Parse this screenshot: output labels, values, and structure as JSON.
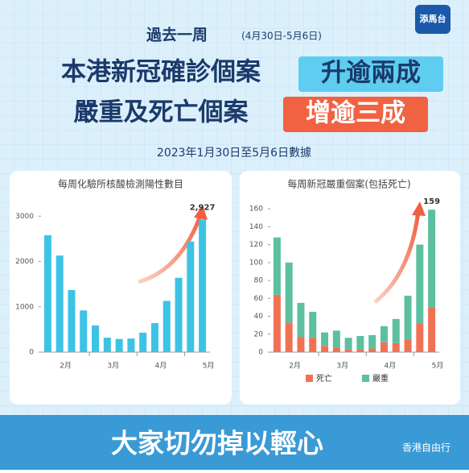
{
  "logo": "添馬台",
  "header": {
    "kicker": "過去一周",
    "period": "(4月30日-5月6日)",
    "line1": "本港新冠確診個案",
    "highlight1": "升逾兩成",
    "line2": "嚴重及死亡個案",
    "highlight2": "增逾三成",
    "source": "2023年1月30日至5月6日數據"
  },
  "footer": {
    "slogan": "大家切勿掉以輕心",
    "watermark": "香港自由行"
  },
  "chart_data": [
    {
      "type": "bar",
      "title": "每周化驗所核酸檢測陽性數目",
      "color": "#3cc3e6",
      "categories": [
        null,
        "2月",
        null,
        null,
        null,
        "3月",
        null,
        null,
        null,
        "4月",
        null,
        null,
        null,
        "5月"
      ],
      "values": [
        2580,
        2130,
        1370,
        920,
        590,
        320,
        290,
        300,
        430,
        640,
        1130,
        1640,
        2440,
        2927
      ],
      "value_labels": [
        null,
        null,
        null,
        null,
        null,
        null,
        null,
        null,
        null,
        null,
        null,
        null,
        null,
        "2,927"
      ],
      "ylim": [
        0,
        3200
      ],
      "yticks": [
        0,
        1000,
        2000,
        3000
      ]
    },
    {
      "type": "stacked_bar",
      "title": "每周新冠嚴重個案(包括死亡)",
      "categories": [
        null,
        "2月",
        null,
        null,
        null,
        "3月",
        null,
        null,
        null,
        "4月",
        null,
        null,
        null,
        "5月"
      ],
      "series": [
        {
          "name": "死亡",
          "color": "#f07254",
          "values": [
            64,
            33,
            17,
            16,
            7,
            5,
            3,
            3,
            4,
            11,
            10,
            14,
            32,
            50
          ]
        },
        {
          "name": "嚴重",
          "color": "#5cc0a0",
          "values": [
            64,
            67,
            38,
            29,
            15,
            19,
            13,
            15,
            15,
            18,
            27,
            49,
            88,
            109
          ]
        }
      ],
      "annotation": "159",
      "ylim": [
        0,
        170
      ],
      "yticks": [
        0,
        20,
        40,
        60,
        80,
        100,
        120,
        140,
        160
      ]
    }
  ]
}
